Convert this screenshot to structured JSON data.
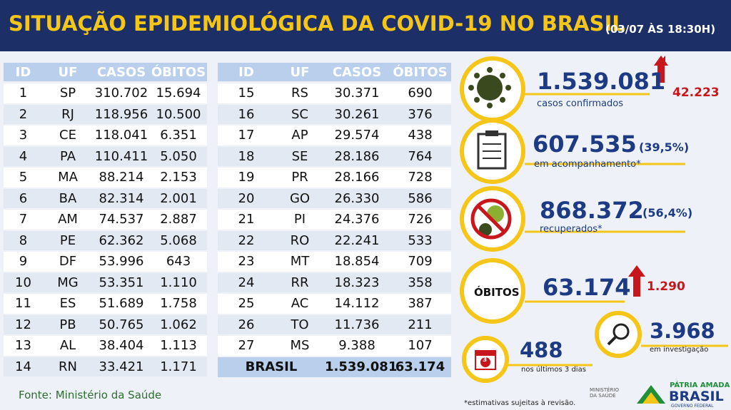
{
  "header": {
    "title": "SITUAÇÃO EPIDEMIOLÓGICA DA COVID-19 NO BRASIL",
    "date": "(03/07 ÀS 18:30H)"
  },
  "tables": [
    {
      "columns": [
        "ID",
        "UF",
        "CASOS",
        "ÓBITOS"
      ],
      "rows": [
        [
          "1",
          "SP",
          "310.702",
          "15.694"
        ],
        [
          "2",
          "RJ",
          "118.956",
          "10.500"
        ],
        [
          "3",
          "CE",
          "118.041",
          "6.351"
        ],
        [
          "4",
          "PA",
          "110.411",
          "5.050"
        ],
        [
          "5",
          "MA",
          "88.214",
          "2.153"
        ],
        [
          "6",
          "BA",
          "82.314",
          "2.001"
        ],
        [
          "7",
          "AM",
          "74.537",
          "2.887"
        ],
        [
          "8",
          "PE",
          "62.362",
          "5.068"
        ],
        [
          "9",
          "DF",
          "53.996",
          "643"
        ],
        [
          "10",
          "MG",
          "53.351",
          "1.110"
        ],
        [
          "11",
          "ES",
          "51.689",
          "1.758"
        ],
        [
          "12",
          "PB",
          "50.765",
          "1.062"
        ],
        [
          "13",
          "AL",
          "38.404",
          "1.113"
        ],
        [
          "14",
          "RN",
          "33.421",
          "1.171"
        ]
      ]
    },
    {
      "columns": [
        "ID",
        "UF",
        "CASOS",
        "ÓBITOS"
      ],
      "rows": [
        [
          "15",
          "RS",
          "30.371",
          "690"
        ],
        [
          "16",
          "SC",
          "30.261",
          "376"
        ],
        [
          "17",
          "AP",
          "29.574",
          "438"
        ],
        [
          "18",
          "SE",
          "28.186",
          "764"
        ],
        [
          "19",
          "PR",
          "28.166",
          "728"
        ],
        [
          "20",
          "GO",
          "26.330",
          "586"
        ],
        [
          "21",
          "PI",
          "24.376",
          "726"
        ],
        [
          "22",
          "RO",
          "22.241",
          "533"
        ],
        [
          "23",
          "MT",
          "18.854",
          "709"
        ],
        [
          "24",
          "RR",
          "18.323",
          "358"
        ],
        [
          "25",
          "AC",
          "14.112",
          "387"
        ],
        [
          "26",
          "TO",
          "11.736",
          "211"
        ],
        [
          "27",
          "MS",
          "9.388",
          "107"
        ]
      ],
      "total": [
        "BRASIL",
        "1.539.081",
        "63.174"
      ]
    }
  ],
  "stats": {
    "confirmed": {
      "value": "1.539.081",
      "change": "42.223",
      "label": "casos confirmados"
    },
    "monitoring": {
      "value": "607.535",
      "percent": "(39,5%)",
      "label": "em acompanhamento*"
    },
    "recovered": {
      "value": "868.372",
      "percent": "(56,4%)",
      "label": "recuperados*"
    },
    "deaths": {
      "badge": "ÓBITOS",
      "value": "63.174",
      "change": "1.290"
    },
    "investigation": {
      "value": "3.968",
      "label": "em investigação"
    },
    "recent": {
      "icon": "3",
      "value": "488",
      "label": "nos últimos 3 dias"
    }
  },
  "footer": {
    "source": "Fonte: Ministério da Saúde",
    "note": "*estimativas sujeitas à revisão.",
    "ministry": "MINISTÉRIO DA SAÚDE",
    "slogan": "PÁTRIA AMADA",
    "country": "BRASIL",
    "government": "GOVERNO FEDERAL"
  }
}
